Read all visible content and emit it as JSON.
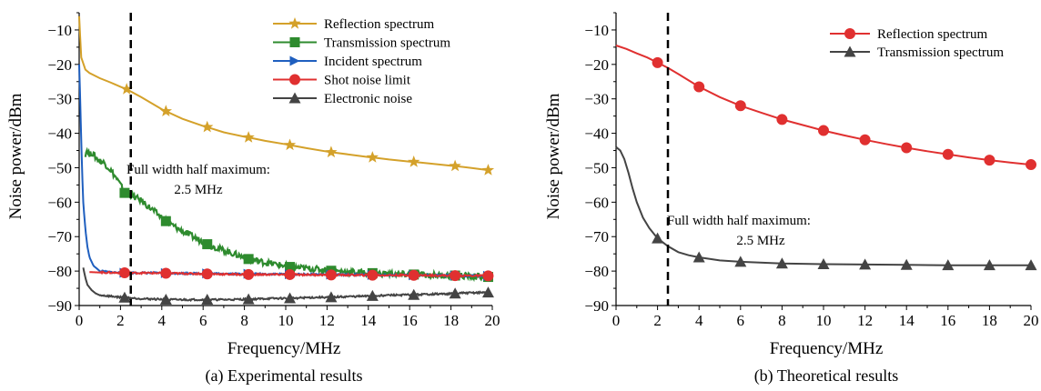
{
  "chart_data": [
    {
      "type": "line",
      "caption": "(a) Experimental results",
      "xlabel": "Frequency/MHz",
      "ylabel": "Noise power/dBm",
      "xlim": [
        0,
        20
      ],
      "ylim": [
        -90,
        -5
      ],
      "xticks": [
        0,
        2,
        4,
        6,
        8,
        10,
        12,
        14,
        16,
        18,
        20
      ],
      "yticks": [
        -90,
        -80,
        -70,
        -60,
        -50,
        -40,
        -30,
        -20,
        -10
      ],
      "legend_position": "top-right",
      "vline": {
        "x": 2.5
      },
      "annotation": {
        "line1": "Full width half maximum:",
        "line2": "2.5 MHz"
      },
      "series": [
        {
          "name": "Reflection spectrum",
          "color": "#d4a12a",
          "marker": "star",
          "x": [
            0,
            0.05,
            0.1,
            0.3,
            0.5,
            1,
            1.5,
            2,
            2.3,
            3,
            4,
            4.2,
            5,
            6,
            6.2,
            7,
            8,
            8.2,
            9,
            10,
            10.2,
            11,
            12,
            12.2,
            13,
            14,
            14.2,
            15,
            16,
            16.2,
            17,
            18,
            18.2,
            19,
            19.8
          ],
          "y": [
            -6,
            -12,
            -18,
            -21.5,
            -22.5,
            -24,
            -25.2,
            -26.5,
            -27.2,
            -29.5,
            -33,
            -33.6,
            -35.8,
            -37.9,
            -38.2,
            -39.7,
            -41,
            -41.2,
            -42.2,
            -43.2,
            -43.4,
            -44.3,
            -45.3,
            -45.5,
            -46.1,
            -46.9,
            -47,
            -47.6,
            -48.2,
            -48.3,
            -48.8,
            -49.4,
            -49.5,
            -50.1,
            -50.7
          ],
          "marker_x": [
            2.3,
            4.2,
            6.2,
            8.2,
            10.2,
            12.2,
            14.2,
            16.2,
            18.2,
            19.8
          ]
        },
        {
          "name": "Transmission spectrum",
          "color": "#2e8b2e",
          "marker": "square",
          "x": [
            0.3,
            0.4,
            0.5,
            0.6,
            0.8,
            1,
            1.2,
            1.5,
            1.8,
            2,
            2.2,
            2.5,
            3,
            3.5,
            4,
            4.2,
            5,
            6,
            6.2,
            7,
            8,
            8.2,
            9,
            10,
            10.2,
            11,
            12,
            12.2,
            13,
            14,
            14.2,
            15,
            16,
            16.2,
            17,
            18,
            18.2,
            19,
            19.8
          ],
          "y": [
            -46,
            -44.5,
            -46.5,
            -45.5,
            -47,
            -48,
            -48.5,
            -50.5,
            -53,
            -55,
            -57.3,
            -58,
            -59.5,
            -62,
            -64.5,
            -65.5,
            -68.5,
            -71.5,
            -72.2,
            -74,
            -76,
            -76.5,
            -77.5,
            -78.5,
            -78.8,
            -79.2,
            -79.7,
            -79.9,
            -80.2,
            -80.5,
            -80.6,
            -80.8,
            -81,
            -81,
            -81.2,
            -81.3,
            -81.3,
            -81.5,
            -81.7
          ],
          "marker_x": [
            2.2,
            4.2,
            6.2,
            8.2,
            10.2,
            12.2,
            14.2,
            16.2,
            18.2,
            19.8
          ]
        },
        {
          "name": "Incident spectrum",
          "color": "#1f5fbf",
          "marker": "triangle-right",
          "x": [
            0,
            0.05,
            0.1,
            0.15,
            0.2,
            0.3,
            0.4,
            0.5,
            0.7,
            1,
            1.5,
            2,
            3,
            4,
            6,
            8,
            10,
            12,
            14,
            16,
            18,
            20
          ],
          "y": [
            -20,
            -30,
            -42,
            -52,
            -60,
            -68,
            -73,
            -76,
            -78.5,
            -80,
            -80.3,
            -80.5,
            -80.5,
            -80.6,
            -80.7,
            -80.8,
            -80.9,
            -81,
            -81.1,
            -81.2,
            -81.3,
            -81.4
          ],
          "marker_x": [
            2.2,
            4.2,
            6.2,
            8.2,
            10.2,
            12.2,
            14.2,
            16.2,
            18.2,
            19.8
          ]
        },
        {
          "name": "Shot noise limit",
          "color": "#e03030",
          "marker": "circle",
          "x": [
            0.5,
            1,
            2,
            4,
            6,
            8,
            10,
            12,
            14,
            16,
            18,
            20
          ],
          "y": [
            -80.3,
            -80.4,
            -80.5,
            -80.6,
            -80.8,
            -81,
            -81,
            -81.1,
            -81.2,
            -81.2,
            -81.3,
            -81.4
          ],
          "marker_x": [
            2.2,
            4.2,
            6.2,
            8.2,
            10.2,
            12.2,
            14.2,
            16.2,
            18.2,
            19.8
          ]
        },
        {
          "name": "Electronic noise",
          "color": "#444444",
          "marker": "triangle-up",
          "x": [
            0.2,
            0.3,
            0.4,
            0.6,
            0.8,
            1,
            1.5,
            2,
            2.2,
            3,
            4,
            4.2,
            5,
            6,
            6.2,
            7,
            8,
            8.2,
            9,
            10,
            10.2,
            11,
            12,
            12.2,
            13,
            14,
            14.2,
            15,
            16,
            16.2,
            17,
            18,
            18.2,
            19,
            19.8
          ],
          "y": [
            -79,
            -82,
            -84,
            -85.5,
            -86.5,
            -87,
            -87.3,
            -87.6,
            -87.7,
            -88,
            -88.2,
            -88.3,
            -88.3,
            -88.3,
            -88.3,
            -88.3,
            -88.2,
            -88.2,
            -88,
            -87.9,
            -87.9,
            -87.7,
            -87.6,
            -87.6,
            -87.4,
            -87.3,
            -87.2,
            -87,
            -86.9,
            -86.9,
            -86.7,
            -86.6,
            -86.5,
            -86.3,
            -86.2
          ],
          "marker_x": [
            2.2,
            4.2,
            6.2,
            8.2,
            10.2,
            12.2,
            14.2,
            16.2,
            18.2,
            19.8
          ]
        }
      ]
    },
    {
      "type": "line",
      "caption": "(b) Theoretical results",
      "xlabel": "Frequency/MHz",
      "ylabel": "Noise power/dBm",
      "xlim": [
        0,
        20
      ],
      "ylim": [
        -90,
        -5
      ],
      "xticks": [
        0,
        2,
        4,
        6,
        8,
        10,
        12,
        14,
        16,
        18,
        20
      ],
      "yticks": [
        -90,
        -80,
        -70,
        -60,
        -50,
        -40,
        -30,
        -20,
        -10
      ],
      "legend_position": "top-right",
      "vline": {
        "x": 2.5
      },
      "annotation": {
        "line1": "Full width half maximum:",
        "line2": "2.5 MHz"
      },
      "series": [
        {
          "name": "Reflection spectrum",
          "color": "#e03030",
          "marker": "circle",
          "x": [
            0,
            0.5,
            1,
            1.5,
            2,
            2.5,
            3,
            4,
            5,
            6,
            7,
            8,
            9,
            10,
            11,
            12,
            13,
            14,
            15,
            16,
            17,
            18,
            19,
            20
          ],
          "y": [
            -14.5,
            -15.5,
            -16.8,
            -18,
            -19.5,
            -21,
            -22.8,
            -26.5,
            -29.5,
            -32,
            -34,
            -36,
            -37.6,
            -39.2,
            -40.6,
            -41.9,
            -43.1,
            -44.2,
            -45.2,
            -46.1,
            -47,
            -47.8,
            -48.5,
            -49.1
          ],
          "marker_x": [
            2,
            4,
            6,
            8,
            10,
            12,
            14,
            16,
            18,
            20
          ]
        },
        {
          "name": "Transmission spectrum",
          "color": "#444444",
          "marker": "triangle-up",
          "x": [
            0,
            0.2,
            0.4,
            0.6,
            0.8,
            1,
            1.3,
            1.6,
            2,
            2.5,
            3,
            3.5,
            4,
            5,
            6,
            8,
            10,
            12,
            14,
            16,
            18,
            20
          ],
          "y": [
            -44,
            -45,
            -47.5,
            -51.5,
            -56,
            -60,
            -64.5,
            -67.5,
            -70.5,
            -72.8,
            -74.5,
            -75.4,
            -76,
            -76.9,
            -77.3,
            -77.8,
            -78,
            -78.1,
            -78.2,
            -78.3,
            -78.3,
            -78.3
          ],
          "marker_x": [
            2,
            4,
            6,
            8,
            10,
            12,
            14,
            16,
            18,
            20
          ]
        }
      ]
    }
  ]
}
